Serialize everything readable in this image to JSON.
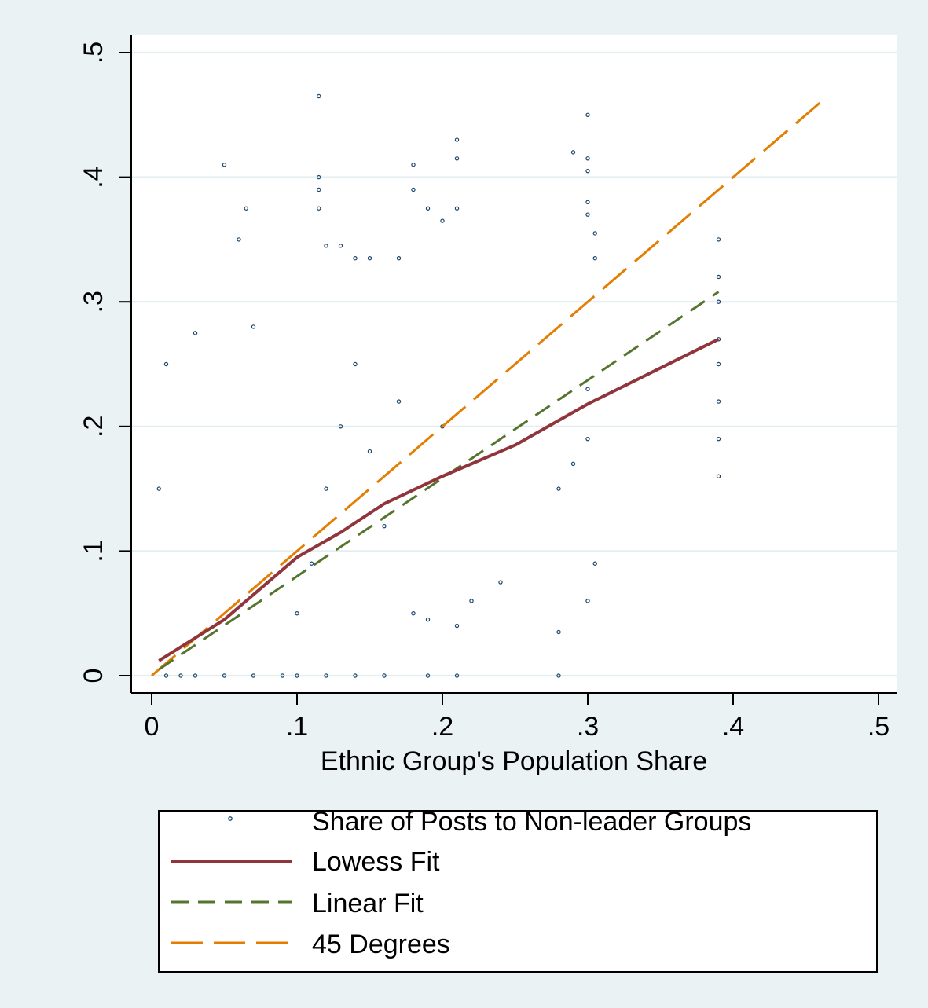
{
  "chart_data": {
    "type": "scatter",
    "xlabel": "Ethnic Group's Population Share",
    "ylabel": "",
    "xlim": [
      0,
      0.5
    ],
    "ylim": [
      0,
      0.5
    ],
    "x_ticks": [
      0,
      0.1,
      0.2,
      0.3,
      0.4,
      0.5
    ],
    "x_tick_labels": [
      "0",
      ".1",
      ".2",
      ".3",
      ".4",
      ".5"
    ],
    "y_ticks": [
      0,
      0.1,
      0.2,
      0.3,
      0.4,
      0.5
    ],
    "y_tick_labels": [
      "0",
      ".1",
      ".2",
      ".3",
      ".4",
      ".5"
    ],
    "grid": "horizontal",
    "legend_position": "bottom",
    "colors": {
      "plot_background": "#ffffff",
      "page_background": "#eaf2f3",
      "grid": "#e2eef0",
      "scatter": "#1a476f",
      "lowess": "#90353b",
      "linear": "#55752f",
      "degrees45": "#e37e00"
    },
    "series": [
      {
        "name": "Share of Posts to Non-leader Groups",
        "type": "scatter",
        "points": [
          [
            0.005,
            0.15
          ],
          [
            0.01,
            0.25
          ],
          [
            0.03,
            0.275
          ],
          [
            0.05,
            0.41
          ],
          [
            0.06,
            0.35
          ],
          [
            0.065,
            0.375
          ],
          [
            0.07,
            0.28
          ],
          [
            0.115,
            0.465
          ],
          [
            0.115,
            0.4
          ],
          [
            0.115,
            0.39
          ],
          [
            0.115,
            0.375
          ],
          [
            0.12,
            0.345
          ],
          [
            0.13,
            0.345
          ],
          [
            0.14,
            0.335
          ],
          [
            0.15,
            0.335
          ],
          [
            0.17,
            0.335
          ],
          [
            0.18,
            0.41
          ],
          [
            0.18,
            0.39
          ],
          [
            0.19,
            0.375
          ],
          [
            0.21,
            0.43
          ],
          [
            0.21,
            0.415
          ],
          [
            0.21,
            0.375
          ],
          [
            0.2,
            0.365
          ],
          [
            0.29,
            0.42
          ],
          [
            0.3,
            0.45
          ],
          [
            0.3,
            0.415
          ],
          [
            0.3,
            0.405
          ],
          [
            0.3,
            0.38
          ],
          [
            0.3,
            0.37
          ],
          [
            0.305,
            0.335
          ],
          [
            0.305,
            0.355
          ],
          [
            0.39,
            0.35
          ],
          [
            0.39,
            0.32
          ],
          [
            0.39,
            0.3
          ],
          [
            0.39,
            0.27
          ],
          [
            0.39,
            0.25
          ],
          [
            0.39,
            0.22
          ],
          [
            0.39,
            0.19
          ],
          [
            0.39,
            0.16
          ],
          [
            0.1,
            0.05
          ],
          [
            0.11,
            0.09
          ],
          [
            0.12,
            0.15
          ],
          [
            0.13,
            0.2
          ],
          [
            0.14,
            0.25
          ],
          [
            0.15,
            0.18
          ],
          [
            0.16,
            0.12
          ],
          [
            0.17,
            0.22
          ],
          [
            0.18,
            0.05
          ],
          [
            0.19,
            0.045
          ],
          [
            0.2,
            0.2
          ],
          [
            0.21,
            0.04
          ],
          [
            0.22,
            0.06
          ],
          [
            0.24,
            0.075
          ],
          [
            0.28,
            0.035
          ],
          [
            0.28,
            0.15
          ],
          [
            0.3,
            0.06
          ],
          [
            0.305,
            0.09
          ],
          [
            0.3,
            0.19
          ],
          [
            0.3,
            0.23
          ],
          [
            0.29,
            0.17
          ],
          [
            0.01,
            0
          ],
          [
            0.02,
            0
          ],
          [
            0.03,
            0
          ],
          [
            0.05,
            0
          ],
          [
            0.07,
            0
          ],
          [
            0.09,
            0
          ],
          [
            0.1,
            0
          ],
          [
            0.12,
            0
          ],
          [
            0.14,
            0
          ],
          [
            0.16,
            0
          ],
          [
            0.19,
            0
          ],
          [
            0.21,
            0
          ],
          [
            0.28,
            0
          ]
        ]
      },
      {
        "name": "Lowess Fit",
        "type": "line",
        "points": [
          [
            0.005,
            0.012
          ],
          [
            0.05,
            0.045
          ],
          [
            0.1,
            0.095
          ],
          [
            0.13,
            0.115
          ],
          [
            0.16,
            0.138
          ],
          [
            0.2,
            0.16
          ],
          [
            0.25,
            0.185
          ],
          [
            0.3,
            0.218
          ],
          [
            0.39,
            0.27
          ]
        ]
      },
      {
        "name": "Linear Fit",
        "type": "line",
        "points": [
          [
            0.005,
            0.005
          ],
          [
            0.39,
            0.308
          ]
        ]
      },
      {
        "name": "45 Degrees",
        "type": "line",
        "points": [
          [
            0,
            0
          ],
          [
            0.462,
            0.462
          ]
        ]
      }
    ]
  }
}
